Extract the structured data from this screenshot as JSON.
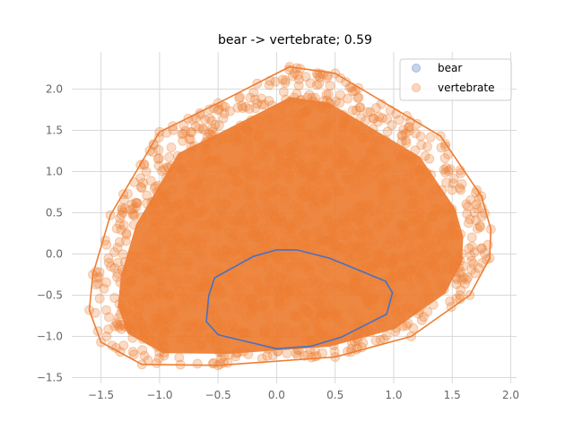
{
  "chart_data": {
    "type": "scatter",
    "title": "bear -> vertebrate; 0.59",
    "xlabel": "",
    "ylabel": "",
    "xlim": [
      -1.75,
      2.05
    ],
    "ylim": [
      -1.57,
      2.45
    ],
    "xticks": [
      -1.5,
      -1.0,
      -0.5,
      0.0,
      0.5,
      1.0,
      1.5,
      2.0
    ],
    "xtick_labels": [
      "−1.5",
      "−1.0",
      "−0.5",
      "0.0",
      "0.5",
      "1.0",
      "1.5",
      "2.0"
    ],
    "yticks": [
      -1.5,
      -1.0,
      -0.5,
      0.0,
      0.5,
      1.0,
      1.5,
      2.0
    ],
    "ytick_labels": [
      "−1.5",
      "−1.0",
      "−0.5",
      "0.0",
      "0.5",
      "1.0",
      "1.5",
      "2.0"
    ],
    "grid": true,
    "legend_position": "top-right",
    "series": [
      {
        "name": "bear",
        "color": "#4472c4",
        "hull": [
          [
            0.0,
            0.05
          ],
          [
            0.17,
            0.05
          ],
          [
            0.45,
            -0.05
          ],
          [
            0.93,
            -0.33
          ],
          [
            0.99,
            -0.47
          ],
          [
            0.94,
            -0.73
          ],
          [
            0.55,
            -1.01
          ],
          [
            0.29,
            -1.12
          ],
          [
            0.0,
            -1.15
          ],
          [
            -0.5,
            -0.98
          ],
          [
            -0.6,
            -0.82
          ],
          [
            -0.58,
            -0.51
          ],
          [
            -0.53,
            -0.29
          ],
          [
            -0.2,
            -0.03
          ]
        ]
      },
      {
        "name": "vertebrate",
        "color": "#ed7d31",
        "hull": [
          [
            0.11,
            2.27
          ],
          [
            0.5,
            2.19
          ],
          [
            1.4,
            1.43
          ],
          [
            1.75,
            0.7
          ],
          [
            1.83,
            0.3
          ],
          [
            1.82,
            -0.05
          ],
          [
            1.65,
            -0.5
          ],
          [
            1.15,
            -1.0
          ],
          [
            0.5,
            -1.25
          ],
          [
            -0.5,
            -1.35
          ],
          [
            -1.15,
            -1.34
          ],
          [
            -1.5,
            -1.07
          ],
          [
            -1.6,
            -0.68
          ],
          [
            -1.57,
            -0.25
          ],
          [
            -1.42,
            0.47
          ],
          [
            -1.0,
            1.48
          ],
          [
            -0.5,
            1.83
          ]
        ]
      }
    ]
  }
}
